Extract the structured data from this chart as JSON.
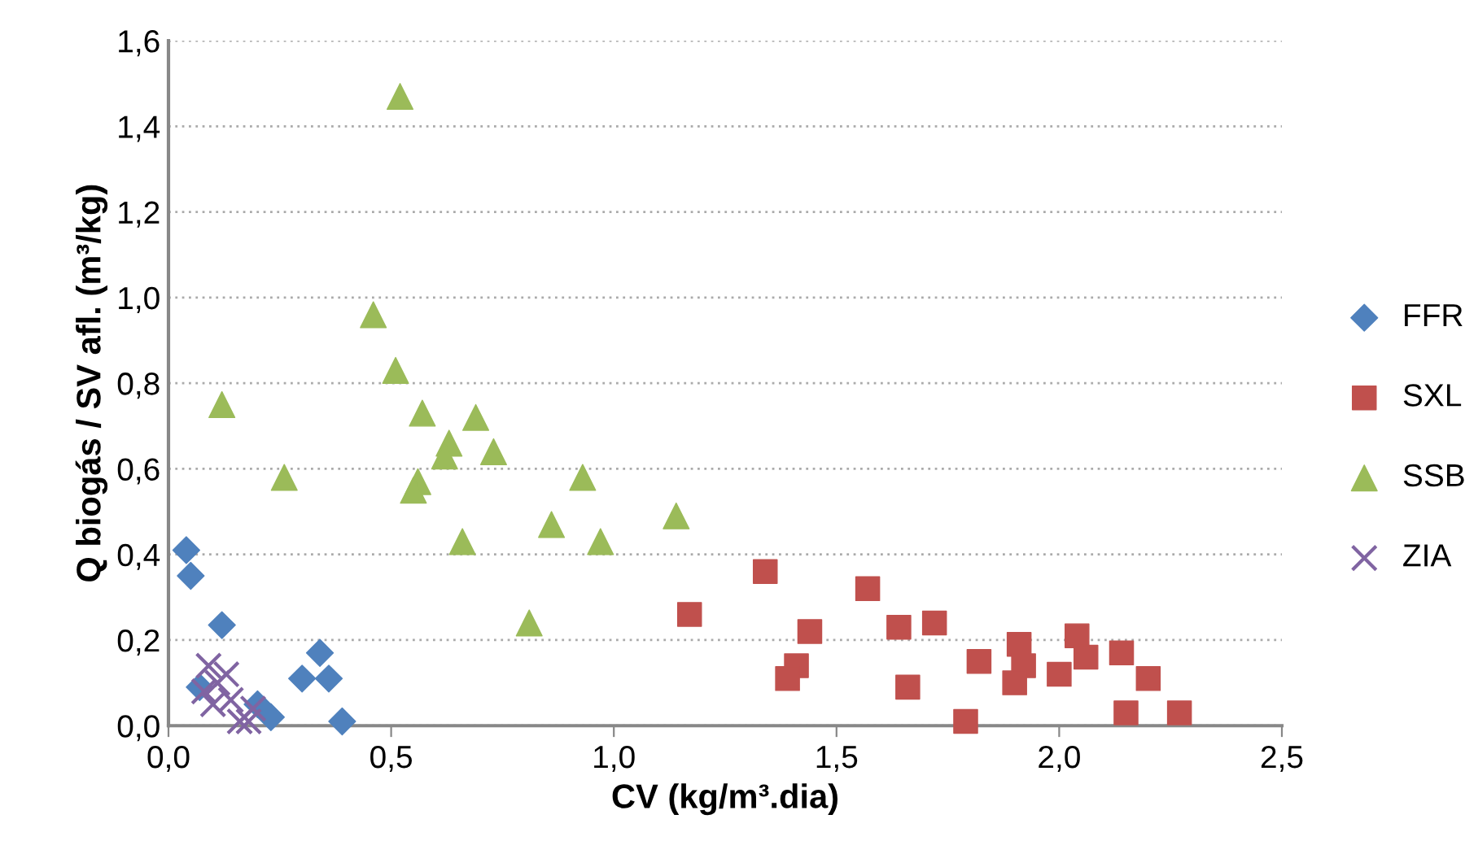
{
  "chart_data": {
    "type": "scatter",
    "xlabel": "CV (kg/m³.dia)",
    "ylabel": "Q biogás / SV afl. (m³/kg)",
    "xlim": [
      0,
      2.5
    ],
    "xticks": [
      {
        "value": 0,
        "label": "0,0"
      },
      {
        "value": 0.5,
        "label": "0,5"
      },
      {
        "value": 1,
        "label": "1,0"
      },
      {
        "value": 1.5,
        "label": "1,5"
      },
      {
        "value": 2,
        "label": "2,0"
      },
      {
        "value": 2.5,
        "label": "2,5"
      }
    ],
    "ylim": [
      0,
      1.6
    ],
    "yticks": [
      {
        "value": 0,
        "label": "0,0"
      },
      {
        "value": 0.2,
        "label": "0,2"
      },
      {
        "value": 0.4,
        "label": "0,4"
      },
      {
        "value": 0.6,
        "label": "0,6"
      },
      {
        "value": 0.8,
        "label": "0,8"
      },
      {
        "value": 1,
        "label": "1,0"
      },
      {
        "value": 1.2,
        "label": "1,2"
      },
      {
        "value": 1.4,
        "label": "1,4"
      },
      {
        "value": 1.6,
        "label": "1,6"
      }
    ],
    "grid": "y",
    "legend": "right",
    "series": [
      {
        "name": "FFR",
        "color": "#4f81bd",
        "marker": "diamond",
        "x": [
          0.04,
          0.05,
          0.12,
          0.34,
          0.3,
          0.36,
          0.39,
          0.2,
          0.23,
          0.07
        ],
        "values": [
          0.41,
          0.35,
          0.235,
          0.17,
          0.11,
          0.11,
          0.01,
          0.05,
          0.02,
          0.09
        ]
      },
      {
        "name": "SXL",
        "color": "#c0504d",
        "marker": "square",
        "x": [
          1.34,
          1.17,
          1.57,
          1.44,
          1.41,
          1.39,
          1.64,
          1.72,
          1.66,
          1.79,
          1.82,
          1.91,
          1.92,
          1.9,
          2.0,
          2.04,
          2.06,
          2.14,
          2.2,
          2.15,
          2.27
        ],
        "values": [
          0.36,
          0.26,
          0.32,
          0.22,
          0.14,
          0.11,
          0.23,
          0.24,
          0.09,
          0.01,
          0.15,
          0.19,
          0.14,
          0.1,
          0.12,
          0.21,
          0.16,
          0.17,
          0.11,
          0.03,
          0.03
        ]
      },
      {
        "name": "SSB",
        "color": "#9bbb59",
        "marker": "triangle",
        "x": [
          0.52,
          0.46,
          0.51,
          0.12,
          0.57,
          0.69,
          0.63,
          0.62,
          0.73,
          0.26,
          0.56,
          0.55,
          0.93,
          1.14,
          0.86,
          0.66,
          0.97,
          0.81
        ],
        "values": [
          1.47,
          0.96,
          0.83,
          0.75,
          0.73,
          0.72,
          0.66,
          0.63,
          0.64,
          0.58,
          0.57,
          0.55,
          0.58,
          0.49,
          0.47,
          0.43,
          0.43,
          0.24
        ]
      },
      {
        "name": "ZIA",
        "color": "#8064a2",
        "marker": "cross",
        "x": [
          0.09,
          0.08,
          0.11,
          0.13,
          0.14,
          0.16,
          0.18,
          0.19,
          0.16,
          0.1
        ],
        "values": [
          0.14,
          0.08,
          0.1,
          0.12,
          0.06,
          null,
          0.01,
          0.04,
          0.01,
          0.05
        ]
      }
    ]
  }
}
